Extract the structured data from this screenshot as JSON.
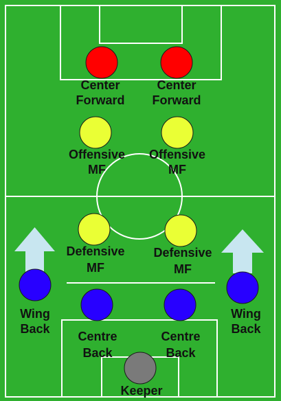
{
  "colors": {
    "pitch": "#2fb02f",
    "lines": "#ffffff",
    "forward": "#ff0000",
    "offensive_mf": "#eaff35",
    "defensive_mf": "#eaff35",
    "defender": "#2800ff",
    "keeper": "#7a7a7a",
    "arrow": "#c8e6f0"
  },
  "players": {
    "center_forward_left": {
      "line1": "Center",
      "line2": "Forward",
      "role": "forward"
    },
    "center_forward_right": {
      "line1": "Center",
      "line2": "Forward",
      "role": "forward"
    },
    "offensive_mf_left": {
      "line1": "Offensive",
      "line2": "MF",
      "role": "offensive_mf"
    },
    "offensive_mf_right": {
      "line1": "Offensive",
      "line2": "MF",
      "role": "offensive_mf"
    },
    "defensive_mf_left": {
      "line1": "Defensive",
      "line2": "MF",
      "role": "defensive_mf"
    },
    "defensive_mf_right": {
      "line1": "Defensive",
      "line2": "MF",
      "role": "defensive_mf"
    },
    "wing_back_left": {
      "line1": "Wing",
      "line2": "Back",
      "role": "defender"
    },
    "wing_back_right": {
      "line1": "Wing",
      "line2": "Back",
      "role": "defender"
    },
    "centre_back_left": {
      "line1": "Centre",
      "line2": "Back",
      "role": "defender"
    },
    "centre_back_right": {
      "line1": "Centre",
      "line2": "Back",
      "role": "defender"
    },
    "keeper": {
      "line1": "Keeper",
      "line2": "",
      "role": "keeper"
    }
  },
  "arrows": {
    "wing_back_left": {
      "direction": "up"
    },
    "wing_back_right": {
      "direction": "up"
    }
  }
}
